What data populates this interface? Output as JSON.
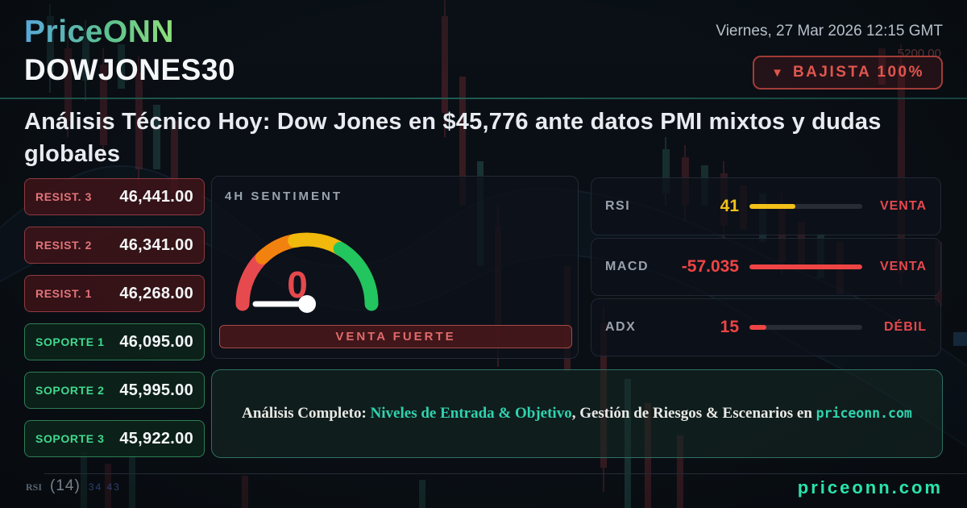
{
  "header": {
    "logo": "PriceONN",
    "datetime": "Viernes, 27 Mar 2026 12:15 GMT",
    "symbol": "DOWJONES30",
    "trend_badge": {
      "icon": "▼",
      "label": "BAJISTA 100%"
    }
  },
  "headline": {
    "line1": "Análisis Técnico Hoy: Dow Jones en $45,776 ante datos PMI mixtos y dudas",
    "line2": "globales"
  },
  "levels": {
    "resistances": [
      {
        "label": "RESIST. 3",
        "value": "46,441.00"
      },
      {
        "label": "RESIST. 2",
        "value": "46,341.00"
      },
      {
        "label": "RESIST. 1",
        "value": "46,268.00"
      }
    ],
    "supports": [
      {
        "label": "SOPORTE 1",
        "value": "46,095.00"
      },
      {
        "label": "SOPORTE 2",
        "value": "45,995.00"
      },
      {
        "label": "SOPORTE 3",
        "value": "45,922.00"
      }
    ]
  },
  "sentiment": {
    "title": "4H SENTIMENT",
    "value": "0",
    "signal": "VENTA FUERTE"
  },
  "indicators": [
    {
      "name": "RSI",
      "value": "41",
      "signal": "VENTA",
      "bar": {
        "pct": 41,
        "color": "#f2c119"
      }
    },
    {
      "name": "MACD",
      "value": "-57.035",
      "signal": "VENTA",
      "bar": {
        "pct": 100,
        "color": "#ef4444"
      }
    },
    {
      "name": "ADX",
      "value": "15",
      "signal": "DÉBIL",
      "bar": {
        "pct": 15,
        "color": "#ef4444"
      }
    }
  ],
  "banner": {
    "prefix": "Análisis Completo: ",
    "highlight": "Niveles de Entrada & Objetivo",
    "middle": ", Gestión de Riesgos & Escenarios en ",
    "site": "priceonn.com"
  },
  "footer": {
    "site": "priceonn.com",
    "chart_label_small": "RSI",
    "chart_label": "(14)",
    "chart_faint_numbers": "34 43"
  },
  "background": {
    "faint_price_label": "5200.00"
  },
  "colors": {
    "bearish_red": "#e5484d",
    "badge_red": "#e0564e",
    "support_green": "#40d98e",
    "resist_red": "#e3747a",
    "rsi_yellow": "#f2c119",
    "teal_accent": "#2fd3ae",
    "footer_teal": "#2be3a9",
    "gauge_red": "#e74a4e",
    "gauge_orange": "#f2820f",
    "gauge_yellow": "#f0b90b",
    "gauge_green": "#22c55e",
    "background": "#0a0f15"
  }
}
